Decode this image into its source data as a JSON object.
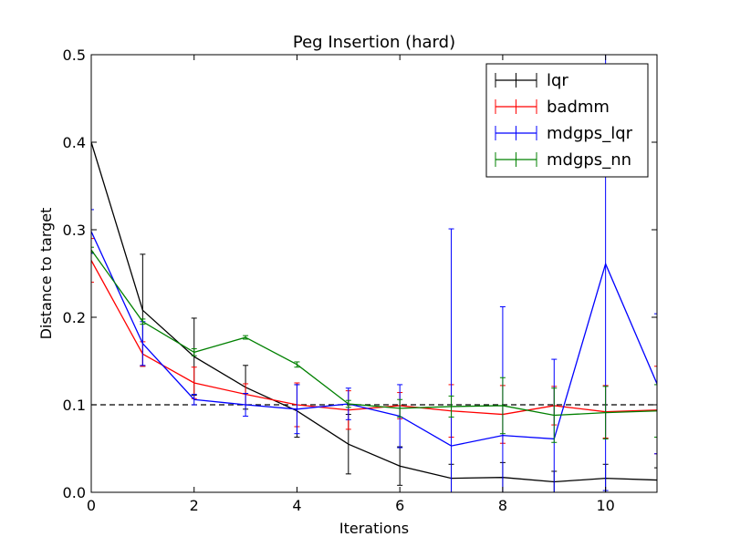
{
  "chart_data": {
    "type": "line",
    "title": "Peg Insertion (hard)",
    "xlabel": "Iterations",
    "ylabel": "Distance to target",
    "xlim": [
      0,
      11
    ],
    "ylim": [
      0,
      0.5
    ],
    "xticks": [
      "0",
      "2",
      "4",
      "6",
      "8",
      "10"
    ],
    "yticks": [
      "0.0",
      "0.1",
      "0.2",
      "0.3",
      "0.4",
      "0.5"
    ],
    "grid": false,
    "legend_position": "top-right",
    "reference_line": {
      "y": 0.1,
      "style": "dashed",
      "color": "#000000"
    },
    "x": [
      0,
      1,
      2,
      3,
      4,
      5,
      6,
      7,
      8,
      9,
      10,
      11
    ],
    "series": [
      {
        "name": "lqr",
        "color": "#000000",
        "values": [
          0.4,
          0.208,
          0.155,
          0.12,
          0.093,
          0.055,
          0.03,
          0.016,
          0.017,
          0.012,
          0.016,
          0.014
        ],
        "error": [
          0.0,
          0.064,
          0.044,
          0.025,
          0.03,
          0.034,
          0.022,
          0.016,
          0.017,
          0.012,
          0.016,
          0.014
        ]
      },
      {
        "name": "badmm",
        "color": "#ff0000",
        "values": [
          0.265,
          0.158,
          0.125,
          0.112,
          0.1,
          0.094,
          0.099,
          0.093,
          0.089,
          0.099,
          0.092,
          0.094
        ],
        "error": [
          0.025,
          0.014,
          0.018,
          0.012,
          0.025,
          0.022,
          0.015,
          0.03,
          0.033,
          0.022,
          0.03,
          0.05
        ]
      },
      {
        "name": "mdgps_lqr",
        "color": "#0000ff",
        "values": [
          0.298,
          0.17,
          0.106,
          0.1,
          0.095,
          0.101,
          0.087,
          0.053,
          0.065,
          0.061,
          0.261,
          0.124
        ],
        "error": [
          0.025,
          0.025,
          0.006,
          0.013,
          0.028,
          0.018,
          0.036,
          0.248,
          0.147,
          0.091,
          0.259,
          0.08
        ]
      },
      {
        "name": "mdgps_nn",
        "color": "#008000",
        "values": [
          0.277,
          0.195,
          0.16,
          0.177,
          0.146,
          0.101,
          0.096,
          0.098,
          0.099,
          0.088,
          0.091,
          0.093
        ],
        "error": [
          0.003,
          0.003,
          0.004,
          0.002,
          0.003,
          0.004,
          0.01,
          0.012,
          0.032,
          0.031,
          0.03,
          0.03
        ]
      }
    ]
  }
}
